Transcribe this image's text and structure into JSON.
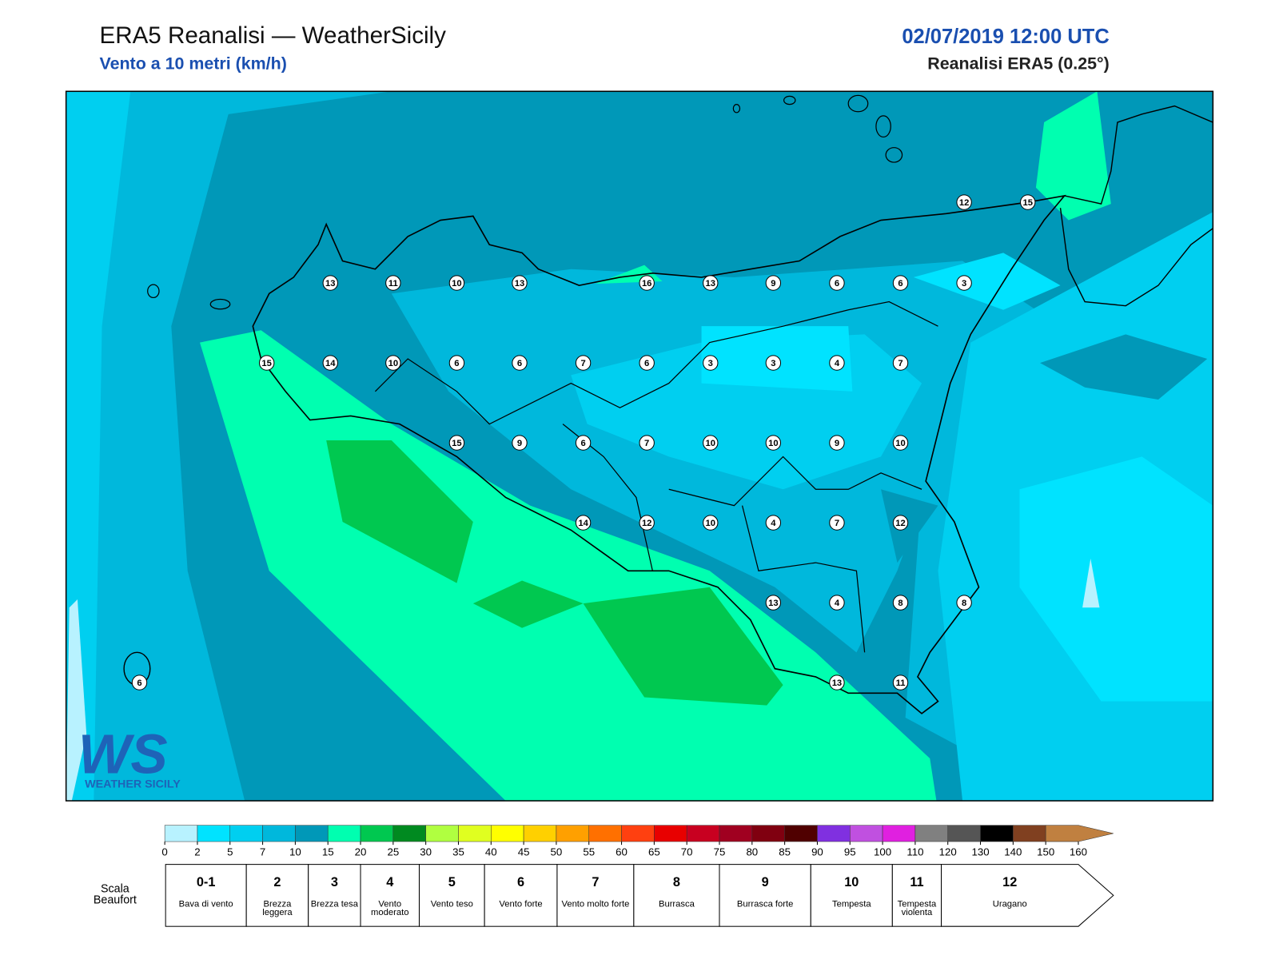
{
  "header": {
    "title": "ERA5 Reanalisi — WeatherSicily",
    "subtitle": "Vento a 10 metri (km/h)",
    "datetime": "02/07/2019 12:00 UTC",
    "source": "Reanalisi ERA5 (0.25°)"
  },
  "stations": {
    "values": [
      12,
      15,
      13,
      11,
      10,
      13,
      16,
      13,
      9,
      6,
      6,
      3,
      15,
      14,
      10,
      6,
      6,
      7,
      6,
      3,
      3,
      4,
      7,
      15,
      9,
      6,
      7,
      10,
      10,
      9,
      10,
      14,
      12,
      10,
      4,
      7,
      12,
      13,
      4,
      8,
      8,
      6,
      13,
      11
    ]
  },
  "colorbar": {
    "ticks": [
      0,
      2,
      5,
      7,
      10,
      15,
      20,
      25,
      30,
      35,
      40,
      45,
      50,
      55,
      60,
      65,
      70,
      75,
      80,
      85,
      90,
      95,
      100,
      110,
      120,
      130,
      140,
      150,
      160
    ],
    "colors": [
      "#b8f2ff",
      "#00e3ff",
      "#00cff0",
      "#00b8dc",
      "#0098b8",
      "#00ffb0",
      "#00c850",
      "#008a20",
      "#b0ff40",
      "#e0ff20",
      "#ffff00",
      "#ffd000",
      "#ffa000",
      "#ff7000",
      "#ff4010",
      "#e80000",
      "#c80020",
      "#a00020",
      "#800010",
      "#500000",
      "#8030e0",
      "#c050e0",
      "#e020e0",
      "#808080",
      "#555555",
      "#000000",
      "#804020",
      "#c08040"
    ]
  },
  "beaufort": {
    "label": "Scala Beaufort",
    "levels": [
      {
        "force": "0-1",
        "description": "Bava di vento"
      },
      {
        "force": "2",
        "description": "Brezza leggera"
      },
      {
        "force": "3",
        "description": "Brezza tesa"
      },
      {
        "force": "4",
        "description": "Vento moderato"
      },
      {
        "force": "5",
        "description": "Vento teso"
      },
      {
        "force": "6",
        "description": "Vento forte"
      },
      {
        "force": "7",
        "description": "Vento molto forte"
      },
      {
        "force": "8",
        "description": "Burrasca"
      },
      {
        "force": "9",
        "description": "Burrasca forte"
      },
      {
        "force": "10",
        "description": "Tempesta"
      },
      {
        "force": "11",
        "description": "Tempesta violenta"
      },
      {
        "force": "12",
        "description": "Uragano"
      }
    ]
  },
  "logo": {
    "text": "WS",
    "caption": "WEATHER SICILY"
  }
}
